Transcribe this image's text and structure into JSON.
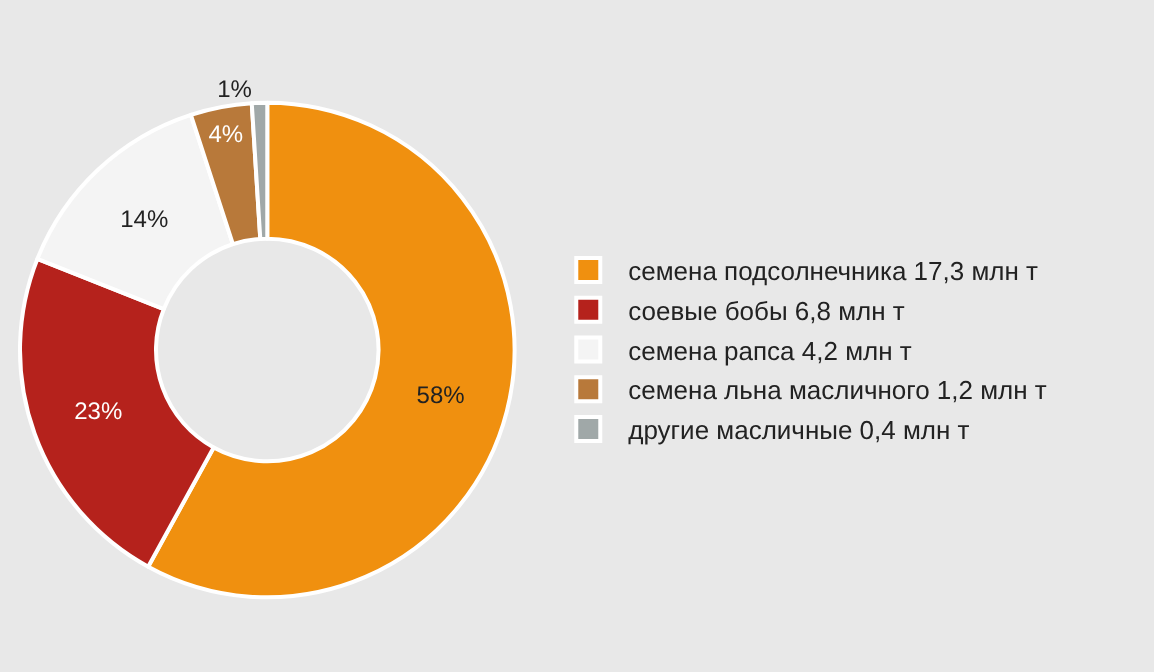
{
  "chart_data": {
    "type": "donut",
    "categories": [
      "семена подсолнечника 17,3 млн т",
      "соевые бобы 6,8 млн т",
      "семена рапса 4,2 млн т",
      "семена льна масличного 1,2 млн т",
      "другие масличные 0,4 млн т"
    ],
    "values": [
      58,
      23,
      14,
      4,
      1
    ],
    "value_labels": [
      "58%",
      "23%",
      "14%",
      "4%",
      "1%"
    ],
    "colors": [
      "#f0900f",
      "#b5221c",
      "#f4f4f4",
      "#b8793a",
      "#a0a8a8"
    ],
    "legend": "right"
  }
}
